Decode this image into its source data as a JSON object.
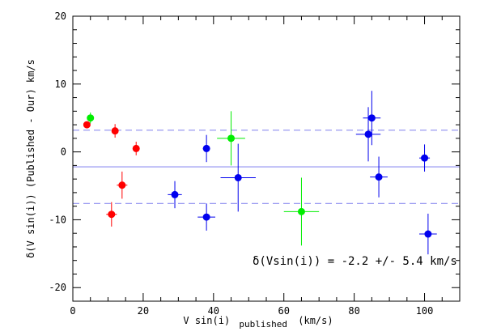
{
  "chart_data": {
    "type": "scatter",
    "title": "",
    "xlabel": "V sin(i)",
    "xlabel_subscript": "published",
    "xlabel_units": "(km/s)",
    "ylabel": "δ(V sin(i)) (Published - Our) km/s",
    "xlim": [
      0,
      110
    ],
    "ylim": [
      -22,
      20
    ],
    "x_ticks": [
      0,
      20,
      40,
      60,
      80,
      100
    ],
    "y_ticks": [
      -20,
      -10,
      0,
      10,
      20
    ],
    "grid": false,
    "legend": "none",
    "series": [
      {
        "color": "#ff0000",
        "points": [
          {
            "x": 4,
            "y": 4.0,
            "xerr": 0.5,
            "yerr": 0.5
          },
          {
            "x": 12,
            "y": 3.1,
            "xerr": 0.8,
            "yerr": 1.0
          },
          {
            "x": 18,
            "y": 0.5,
            "xerr": 0.8,
            "yerr": 1.0
          },
          {
            "x": 14,
            "y": -4.9,
            "xerr": 1.5,
            "yerr": 2.0
          },
          {
            "x": 11,
            "y": -9.2,
            "xerr": 1.5,
            "yerr": 1.8
          }
        ]
      },
      {
        "color": "#00ee00",
        "points": [
          {
            "x": 5,
            "y": 5.0,
            "xerr": 0.5,
            "yerr": 0.8
          },
          {
            "x": 45,
            "y": 2.0,
            "xerr": 4.0,
            "yerr": 4.0
          },
          {
            "x": 65,
            "y": -8.8,
            "xerr": 5.0,
            "yerr": 5.0
          }
        ]
      },
      {
        "color": "#0000ee",
        "points": [
          {
            "x": 38,
            "y": 0.5,
            "xerr": 1.0,
            "yerr": 2.0
          },
          {
            "x": 29,
            "y": -6.3,
            "xerr": 2.0,
            "yerr": 2.0
          },
          {
            "x": 38,
            "y": -9.6,
            "xerr": 2.5,
            "yerr": 2.0
          },
          {
            "x": 47,
            "y": -3.8,
            "xerr": 5.0,
            "yerr": 5.0
          },
          {
            "x": 84,
            "y": 2.6,
            "xerr": 3.5,
            "yerr": 4.0
          },
          {
            "x": 85,
            "y": 5.0,
            "xerr": 2.5,
            "yerr": 4.0
          },
          {
            "x": 87,
            "y": -3.7,
            "xerr": 2.5,
            "yerr": 3.0
          },
          {
            "x": 100,
            "y": -0.9,
            "xerr": 1.5,
            "yerr": 2.0
          },
          {
            "x": 101,
            "y": -12.1,
            "xerr": 2.5,
            "yerr": 3.0
          }
        ]
      }
    ],
    "reference_lines": [
      {
        "y": -2.2,
        "style": "solid",
        "color": "#8f8ff0"
      },
      {
        "y": 3.2,
        "style": "dashed",
        "color": "#8f8ff0"
      },
      {
        "y": -7.6,
        "style": "dashed",
        "color": "#8f8ff0"
      }
    ],
    "annotation": {
      "text": "δ(Vsin(i)) = -2.2 +/- 5.4 km/s",
      "color": "#2222dd",
      "position": "bottom-right"
    }
  }
}
